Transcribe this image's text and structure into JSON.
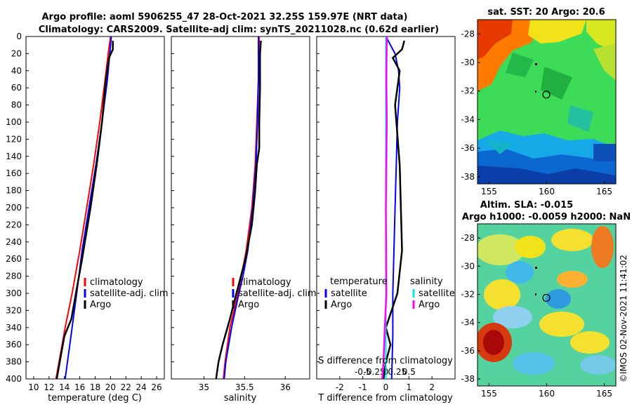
{
  "title_line1": "Argo profile: aoml 5906255_47 28-Oct-2021 32.25S 159.97E (NRT data)",
  "title_line2": "Climatology: CARS2009. Satellite-adj clim: synTS_20211028.nc (0.62d earlier)",
  "watermark": "©IMOS 02-Nov-2021 11:41:02",
  "colors": {
    "climatology": "#ff0000",
    "satellite": "#0000ff",
    "argo": "#000000",
    "sat_salinity": "#00e5ee",
    "argo_salinity": "#ff00ff"
  },
  "chart_data": [
    {
      "type": "line",
      "id": "temperature",
      "xlabel": "temperature (deg C)",
      "xlim": [
        9,
        27
      ],
      "xticks": [
        "10",
        "12",
        "14",
        "16",
        "18",
        "20",
        "22",
        "24",
        "26"
      ],
      "ylim": [
        400,
        0
      ],
      "yticks": [
        "0",
        "20",
        "40",
        "60",
        "80",
        "100",
        "120",
        "140",
        "160",
        "180",
        "200",
        "220",
        "240",
        "260",
        "280",
        "300",
        "320",
        "340",
        "360",
        "380",
        "400"
      ],
      "legend": [
        "climatology",
        "satellite-adj. clim",
        "Argo"
      ],
      "series": [
        {
          "name": "climatology",
          "color": "#ff0000",
          "depth": [
            0,
            20,
            50,
            100,
            150,
            200,
            250,
            300,
            340,
            380,
            400
          ],
          "values": [
            20.0,
            19.7,
            19.3,
            18.6,
            17.8,
            16.9,
            16.0,
            15.0,
            14.1,
            13.3,
            12.9
          ]
        },
        {
          "name": "satellite-adj. clim",
          "color": "#0000ff",
          "depth": [
            0,
            20,
            50,
            100,
            150,
            200,
            250,
            300,
            340,
            380,
            400
          ],
          "values": [
            20.1,
            19.9,
            19.6,
            18.9,
            18.1,
            17.2,
            16.3,
            15.6,
            15.0,
            14.4,
            14.1
          ]
        },
        {
          "name": "Argo",
          "color": "#000000",
          "depth": [
            5,
            15,
            25,
            50,
            70,
            100,
            150,
            200,
            260,
            300,
            330,
            350,
            370,
            390,
            400
          ],
          "values": [
            20.3,
            20.3,
            19.8,
            19.4,
            19.2,
            18.9,
            18.2,
            17.4,
            16.3,
            15.5,
            14.9,
            14.0,
            13.6,
            13.2,
            13.0
          ]
        }
      ]
    },
    {
      "type": "line",
      "id": "salinity",
      "xlabel": "salinity",
      "xlim": [
        34.6,
        36.3
      ],
      "xticks": [
        "35",
        "35.5",
        "36"
      ],
      "ylim": [
        400,
        0
      ],
      "legend": [
        "climatology",
        "satellite-adj. clim",
        "Argo"
      ],
      "series": [
        {
          "name": "climatology",
          "color": "#ff0000",
          "depth": [
            0,
            50,
            100,
            150,
            200,
            250,
            280,
            300,
            340,
            380,
            400
          ],
          "values": [
            35.68,
            35.67,
            35.65,
            35.63,
            35.59,
            35.52,
            35.46,
            35.42,
            35.32,
            35.26,
            35.24
          ]
        },
        {
          "name": "satellite-adj. clim",
          "color": "#0000ff",
          "depth": [
            0,
            50,
            100,
            150,
            200,
            250,
            280,
            300,
            340,
            380,
            400
          ],
          "values": [
            35.67,
            35.67,
            35.66,
            35.64,
            35.6,
            35.54,
            35.48,
            35.43,
            35.34,
            35.27,
            35.25
          ]
        },
        {
          "name": "Argo",
          "color": "#000000",
          "depth": [
            5,
            20,
            60,
            100,
            130,
            150,
            180,
            220,
            260,
            300,
            330,
            360,
            380,
            400
          ],
          "values": [
            35.7,
            35.69,
            35.69,
            35.68,
            35.68,
            35.65,
            35.63,
            35.59,
            35.51,
            35.4,
            35.32,
            35.23,
            35.18,
            35.15
          ]
        }
      ]
    },
    {
      "type": "line",
      "id": "difference",
      "xlabel": "T difference from climatology",
      "x2label": "S difference from climatology",
      "xlim": [
        -3,
        3
      ],
      "xticks": [
        "-2",
        "-1",
        "0",
        "1",
        "2"
      ],
      "x2ticks": [
        "-0.5",
        "-0.25",
        "0",
        "0.25",
        "0.5"
      ],
      "ylim": [
        400,
        0
      ],
      "legend_titles": [
        "temperature",
        "salinity"
      ],
      "legend_t": [
        "satellite",
        "Argo"
      ],
      "legend_s": [
        "satellite",
        "Argo"
      ],
      "series": [
        {
          "name": "T satellite",
          "color": "#0000ff",
          "depth": [
            0,
            20,
            40,
            60,
            80,
            100,
            150,
            200,
            250,
            300,
            350,
            400
          ],
          "values": [
            0.0,
            0.4,
            0.55,
            0.6,
            0.55,
            0.5,
            0.45,
            0.4,
            0.35,
            0.3,
            0.3,
            0.25
          ]
        },
        {
          "name": "T Argo",
          "color": "#000000",
          "depth": [
            5,
            15,
            25,
            40,
            80,
            150,
            250,
            300,
            340,
            360,
            380,
            400
          ],
          "values": [
            0.8,
            0.7,
            0.3,
            0.6,
            0.4,
            0.6,
            0.7,
            0.5,
            0.0,
            0.2,
            0.0,
            -0.1
          ]
        },
        {
          "name": "S satellite",
          "color": "#00e5ee",
          "depth": [
            0,
            100,
            200,
            300,
            400
          ],
          "values": [
            0.0,
            0.0,
            0.0,
            0.0,
            0.0
          ]
        },
        {
          "name": "S Argo",
          "color": "#ff00ff",
          "depth": [
            0,
            50,
            100,
            200,
            300,
            350,
            380,
            400
          ],
          "values": [
            0.02,
            0.01,
            0.02,
            0.0,
            0.01,
            -0.03,
            -0.05,
            -0.08
          ]
        }
      ]
    },
    {
      "type": "heatmap",
      "id": "sst_map",
      "title": "sat. SST: 20 Argo: 20.6",
      "xlim": [
        154,
        166
      ],
      "ylim": [
        -38.5,
        -27
      ],
      "xticks": [
        "155",
        "160",
        "165"
      ],
      "yticks": [
        "-28",
        "-30",
        "-32",
        "-34",
        "-36",
        "-38"
      ],
      "argo_position": [
        159.97,
        -32.25
      ]
    },
    {
      "type": "heatmap",
      "id": "sla_map",
      "title1": "Altim. SLA: -0.015",
      "title2": "Argo h1000: -0.0059 h2000: NaN",
      "xlim": [
        154,
        166
      ],
      "ylim": [
        -38.5,
        -27
      ],
      "xticks": [
        "155",
        "160",
        "165"
      ],
      "yticks": [
        "-28",
        "-30",
        "-32",
        "-34",
        "-36",
        "-38"
      ],
      "argo_position": [
        159.97,
        -32.25
      ]
    }
  ]
}
